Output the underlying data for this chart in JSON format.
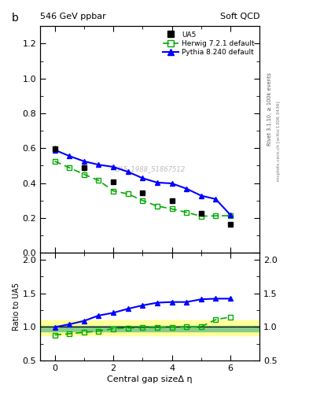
{
  "title_left": "546 GeV ppbar",
  "title_right": "Soft QCD",
  "ylabel_main": "b",
  "ylabel_ratio": "Ratio to UA5",
  "xlabel": "Central gap sizeΔ η",
  "right_label_main": "Rivet 3.1.10, ≥ 100k events",
  "right_label_sub": "mcplots.cern.ch [arXiv:1306.3436]",
  "watermark": "UA5_1988_S1867512",
  "ua5_x": [
    0.0,
    1.0,
    2.0,
    3.0,
    4.0,
    5.0,
    6.0
  ],
  "ua5_y": [
    0.595,
    0.49,
    0.405,
    0.345,
    0.3,
    0.225,
    0.165
  ],
  "ua5_yerr": [
    0.018,
    0.018,
    0.013,
    0.013,
    0.011,
    0.011,
    0.009
  ],
  "herwig_x": [
    0.0,
    0.5,
    1.0,
    1.5,
    2.0,
    2.5,
    3.0,
    3.5,
    4.0,
    4.5,
    5.0,
    5.5,
    6.0
  ],
  "herwig_y": [
    0.525,
    0.488,
    0.45,
    0.415,
    0.355,
    0.338,
    0.3,
    0.268,
    0.252,
    0.232,
    0.21,
    0.212,
    0.213
  ],
  "pythia_x": [
    0.0,
    0.5,
    1.0,
    1.5,
    2.0,
    2.5,
    3.0,
    3.5,
    4.0,
    4.5,
    5.0,
    5.5,
    6.0
  ],
  "pythia_y": [
    0.59,
    0.555,
    0.525,
    0.505,
    0.493,
    0.465,
    0.428,
    0.403,
    0.398,
    0.368,
    0.328,
    0.308,
    0.218
  ],
  "herwig_ratio_x": [
    0.0,
    0.5,
    1.0,
    1.5,
    2.0,
    2.5,
    3.0,
    3.5,
    4.0,
    4.5,
    5.0,
    5.5,
    6.0
  ],
  "herwig_ratio_y": [
    0.882,
    0.9,
    0.92,
    0.94,
    0.975,
    0.985,
    0.99,
    0.994,
    0.998,
    1.002,
    1.003,
    1.108,
    1.148
  ],
  "pythia_ratio_x": [
    0.0,
    0.5,
    1.0,
    1.5,
    2.0,
    2.5,
    3.0,
    3.5,
    4.0,
    4.5,
    5.0,
    5.5,
    6.0
  ],
  "pythia_ratio_y": [
    0.998,
    1.04,
    1.09,
    1.17,
    1.21,
    1.27,
    1.32,
    1.36,
    1.37,
    1.37,
    1.41,
    1.42,
    1.42
  ],
  "ua5_color": "#000000",
  "herwig_color": "#00aa00",
  "pythia_color": "#0000ff",
  "band_yellow_lo": 0.88,
  "band_yellow_hi": 1.1,
  "band_green_lo": 0.94,
  "band_green_hi": 1.02,
  "xlim": [
    -0.5,
    7.0
  ],
  "ylim_main": [
    0.0,
    1.3
  ],
  "ylim_ratio": [
    0.5,
    2.1
  ]
}
